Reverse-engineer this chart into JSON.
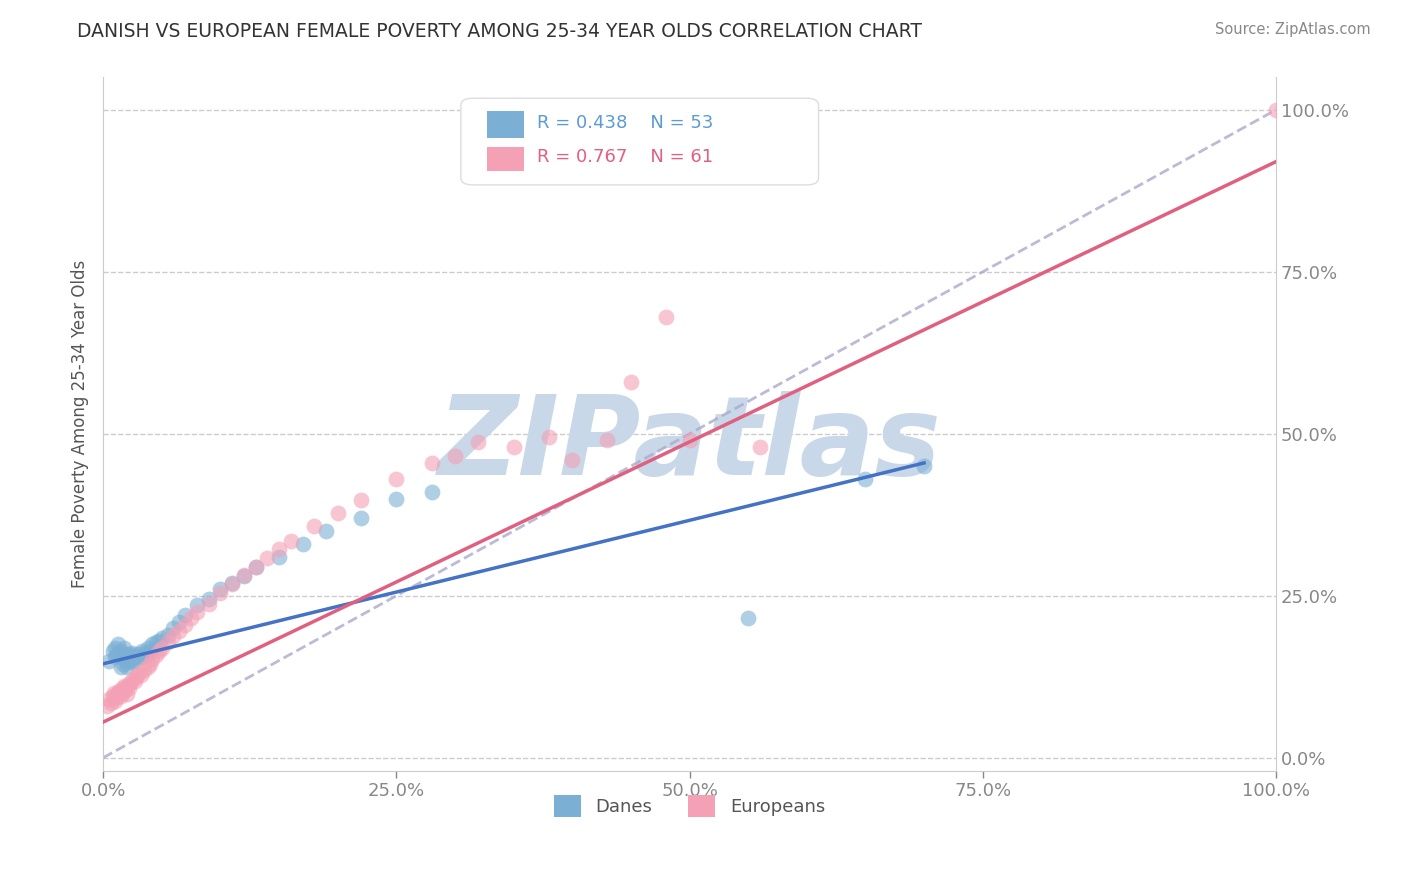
{
  "title": "DANISH VS EUROPEAN FEMALE POVERTY AMONG 25-34 YEAR OLDS CORRELATION CHART",
  "source": "Source: ZipAtlas.com",
  "ylabel": "Female Poverty Among 25-34 Year Olds",
  "xlim": [
    0,
    1
  ],
  "ylim": [
    -0.02,
    1.05
  ],
  "xticks": [
    0.0,
    0.25,
    0.5,
    0.75,
    1.0
  ],
  "yticks": [
    0.0,
    0.25,
    0.5,
    0.75,
    1.0
  ],
  "xtick_labels": [
    "0.0%",
    "25.0%",
    "50.0%",
    "75.0%",
    "100.0%"
  ],
  "ytick_labels": [
    "0.0%",
    "25.0%",
    "50.0%",
    "75.0%",
    "100.0%"
  ],
  "danes_color": "#7bafd4",
  "europeans_color": "#f4a0b5",
  "danes_R": 0.438,
  "danes_N": 53,
  "europeans_R": 0.767,
  "europeans_N": 61,
  "danes_scatter_x": [
    0.005,
    0.008,
    0.01,
    0.01,
    0.012,
    0.013,
    0.015,
    0.015,
    0.016,
    0.017,
    0.018,
    0.018,
    0.019,
    0.02,
    0.02,
    0.021,
    0.022,
    0.023,
    0.024,
    0.025,
    0.025,
    0.027,
    0.028,
    0.03,
    0.032,
    0.033,
    0.035,
    0.037,
    0.038,
    0.04,
    0.042,
    0.045,
    0.048,
    0.05,
    0.055,
    0.06,
    0.065,
    0.07,
    0.08,
    0.09,
    0.1,
    0.11,
    0.12,
    0.13,
    0.15,
    0.17,
    0.19,
    0.22,
    0.25,
    0.28,
    0.55,
    0.65,
    0.7
  ],
  "danes_scatter_y": [
    0.15,
    0.165,
    0.155,
    0.17,
    0.16,
    0.175,
    0.14,
    0.165,
    0.155,
    0.145,
    0.16,
    0.17,
    0.15,
    0.14,
    0.158,
    0.148,
    0.155,
    0.16,
    0.152,
    0.148,
    0.162,
    0.155,
    0.15,
    0.16,
    0.155,
    0.165,
    0.162,
    0.158,
    0.17,
    0.165,
    0.175,
    0.178,
    0.18,
    0.185,
    0.19,
    0.2,
    0.21,
    0.22,
    0.235,
    0.245,
    0.26,
    0.27,
    0.28,
    0.295,
    0.31,
    0.33,
    0.35,
    0.37,
    0.4,
    0.41,
    0.215,
    0.43,
    0.45
  ],
  "europeans_scatter_x": [
    0.003,
    0.005,
    0.007,
    0.008,
    0.009,
    0.01,
    0.011,
    0.012,
    0.013,
    0.014,
    0.015,
    0.016,
    0.017,
    0.018,
    0.019,
    0.02,
    0.021,
    0.022,
    0.023,
    0.025,
    0.027,
    0.028,
    0.03,
    0.032,
    0.035,
    0.038,
    0.04,
    0.042,
    0.045,
    0.048,
    0.05,
    0.055,
    0.06,
    0.065,
    0.07,
    0.075,
    0.08,
    0.09,
    0.1,
    0.11,
    0.12,
    0.13,
    0.14,
    0.15,
    0.16,
    0.18,
    0.2,
    0.22,
    0.25,
    0.28,
    0.3,
    0.32,
    0.35,
    0.38,
    0.4,
    0.43,
    0.45,
    0.48,
    0.5,
    0.56,
    1.0
  ],
  "europeans_scatter_y": [
    0.08,
    0.09,
    0.085,
    0.095,
    0.1,
    0.088,
    0.092,
    0.098,
    0.102,
    0.105,
    0.095,
    0.1,
    0.108,
    0.11,
    0.105,
    0.098,
    0.112,
    0.108,
    0.115,
    0.12,
    0.118,
    0.125,
    0.13,
    0.128,
    0.135,
    0.14,
    0.145,
    0.152,
    0.158,
    0.165,
    0.17,
    0.178,
    0.188,
    0.195,
    0.205,
    0.215,
    0.225,
    0.238,
    0.255,
    0.268,
    0.282,
    0.295,
    0.308,
    0.322,
    0.335,
    0.358,
    0.378,
    0.398,
    0.43,
    0.455,
    0.465,
    0.488,
    0.48,
    0.495,
    0.46,
    0.49,
    0.58,
    0.68,
    0.49,
    0.48,
    1.0
  ],
  "background_color": "#ffffff",
  "grid_color": "#cccccc",
  "title_color": "#333333",
  "axis_label_color": "#555555",
  "tick_color": "#5b9bd5",
  "watermark_text": "ZIPatlas",
  "watermark_color": "#c8d8e8",
  "legend_R_color": "#5b9bd5",
  "danes_line_color": "#4472c4",
  "europeans_line_color": "#e06080",
  "ref_line_color": "#aaaacc",
  "danes_line_x0": 0.0,
  "danes_line_y0": 0.145,
  "danes_line_x1": 0.7,
  "danes_line_y1": 0.455,
  "europeans_line_x0": 0.0,
  "europeans_line_y0": 0.055,
  "europeans_line_x1": 1.0,
  "europeans_line_y1": 0.92
}
